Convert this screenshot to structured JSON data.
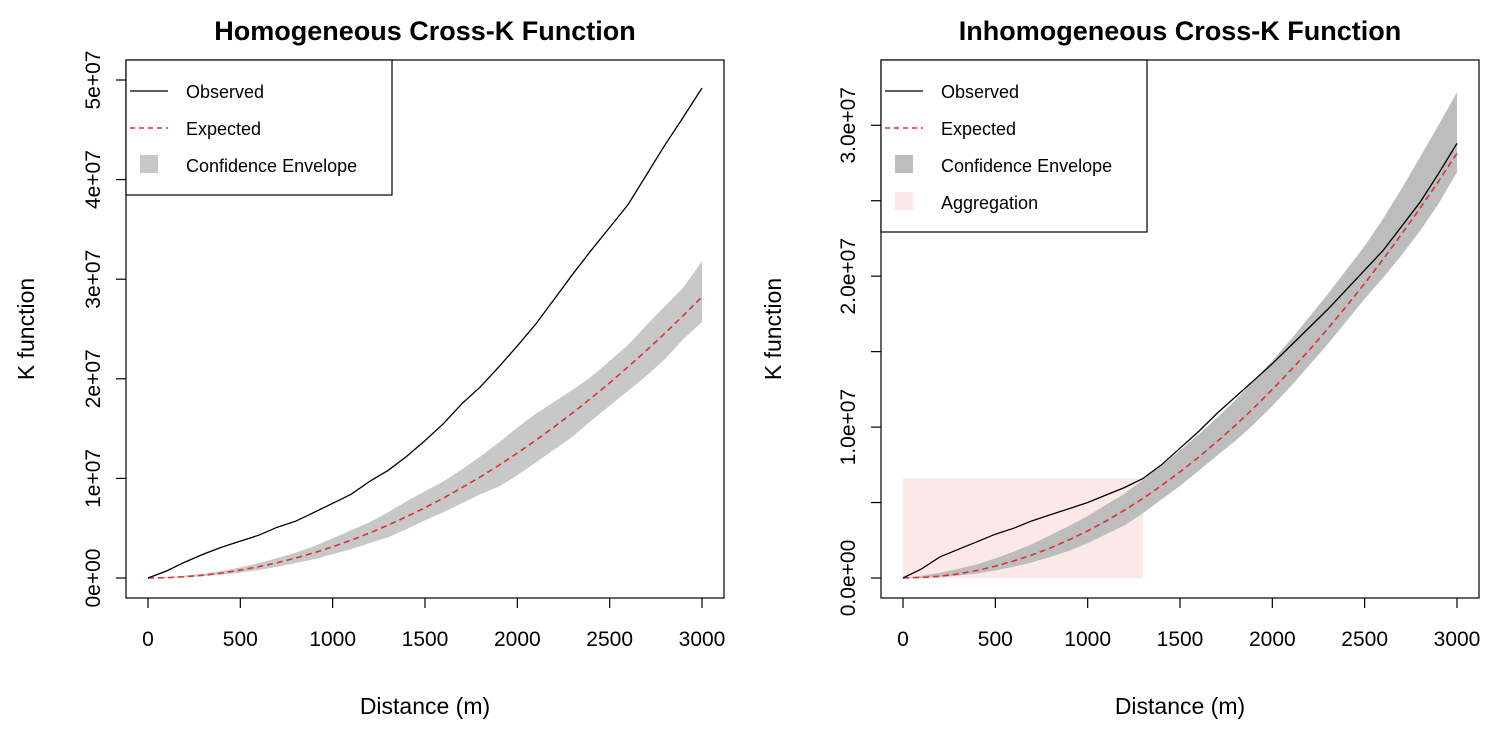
{
  "chart_data": [
    {
      "type": "line",
      "title": "Homogeneous Cross-K Function",
      "xlabel": "Distance (m)",
      "ylabel": "K function",
      "xlim": [
        0,
        3000
      ],
      "ylim": [
        0,
        50000000
      ],
      "x_ticks": [
        0,
        500,
        1000,
        1500,
        2000,
        2500,
        3000
      ],
      "x_tick_labels": [
        "0",
        "500",
        "1000",
        "1500",
        "2000",
        "2500",
        "3000"
      ],
      "y_ticks": [
        0,
        10000000,
        20000000,
        30000000,
        40000000,
        50000000
      ],
      "y_tick_labels": [
        "0e+00",
        "1e+07",
        "2e+07",
        "3e+07",
        "4e+07",
        "5e+07"
      ],
      "legend_position": "top-left",
      "legend": [
        "Observed",
        "Expected",
        "Confidence Envelope"
      ],
      "x": [
        0,
        100,
        200,
        300,
        400,
        500,
        600,
        700,
        800,
        900,
        1000,
        1100,
        1200,
        1300,
        1400,
        1500,
        1600,
        1700,
        1800,
        1900,
        2000,
        2100,
        2200,
        2300,
        2400,
        2500,
        2600,
        2700,
        2800,
        2900,
        3000
      ],
      "series": [
        {
          "name": "Observed",
          "color": "#000000",
          "dash": "solid",
          "values": [
            0,
            700000,
            1600000,
            2400000,
            3100000,
            3700000,
            4300000,
            5100000,
            5700000,
            6600000,
            7500000,
            8400000,
            9700000,
            10800000,
            12200000,
            13800000,
            15500000,
            17500000,
            19200000,
            21200000,
            23300000,
            25500000,
            28000000,
            30500000,
            32900000,
            35200000,
            37500000,
            40500000,
            43500000,
            46300000,
            49200000
          ]
        },
        {
          "name": "Expected",
          "color": "#e03131",
          "dash": "dashed",
          "values": [
            0,
            30000,
            130000,
            280000,
            500000,
            790000,
            1130000,
            1540000,
            2010000,
            2540000,
            3140000,
            3800000,
            4520000,
            5310000,
            6150000,
            7060000,
            8030000,
            9070000,
            10160000,
            11320000,
            12540000,
            13830000,
            15180000,
            16590000,
            18060000,
            19600000,
            21200000,
            22860000,
            24590000,
            26380000,
            28230000
          ]
        }
      ],
      "envelope": {
        "name": "Confidence Envelope",
        "color": "#c8c8c8",
        "lower": [
          0,
          0,
          80000,
          180000,
          320000,
          550000,
          800000,
          1120000,
          1500000,
          1900000,
          2400000,
          2900000,
          3500000,
          4100000,
          4900000,
          5800000,
          6600000,
          7500000,
          8400000,
          9200000,
          10300000,
          11600000,
          12900000,
          14200000,
          15800000,
          17300000,
          18800000,
          20300000,
          22000000,
          24000000,
          25700000
        ],
        "upper": [
          0,
          90000,
          240000,
          420000,
          700000,
          1050000,
          1500000,
          2000000,
          2550000,
          3200000,
          4000000,
          4800000,
          5600000,
          6600000,
          7700000,
          8700000,
          9700000,
          10900000,
          12200000,
          13600000,
          15100000,
          16500000,
          17700000,
          18900000,
          20200000,
          21800000,
          23400000,
          25400000,
          27300000,
          29200000,
          31800000
        ]
      }
    },
    {
      "type": "line",
      "title": "Inhomogeneous Cross-K Function",
      "xlabel": "Distance (m)",
      "ylabel": "K function",
      "xlim": [
        0,
        3000
      ],
      "ylim": [
        0,
        33000000
      ],
      "x_ticks": [
        0,
        500,
        1000,
        1500,
        2000,
        2500,
        3000
      ],
      "x_tick_labels": [
        "0",
        "500",
        "1000",
        "1500",
        "2000",
        "2500",
        "3000"
      ],
      "y_ticks": [
        0,
        5000000,
        10000000,
        15000000,
        20000000,
        25000000,
        30000000
      ],
      "y_tick_labels": [
        "0.0e+00",
        "",
        "1.0e+07",
        "",
        "2.0e+07",
        "",
        "3.0e+07"
      ],
      "legend_position": "top-left",
      "legend": [
        "Observed",
        "Expected",
        "Confidence Envelope",
        "Aggregation"
      ],
      "x": [
        0,
        100,
        200,
        300,
        400,
        500,
        600,
        700,
        800,
        900,
        1000,
        1100,
        1200,
        1300,
        1400,
        1500,
        1600,
        1700,
        1800,
        1900,
        2000,
        2100,
        2200,
        2300,
        2400,
        2500,
        2600,
        2700,
        2800,
        2900,
        3000
      ],
      "series": [
        {
          "name": "Observed",
          "color": "#000000",
          "dash": "solid",
          "values": [
            0,
            600000,
            1400000,
            1900000,
            2400000,
            2900000,
            3300000,
            3800000,
            4200000,
            4600000,
            5000000,
            5500000,
            6000000,
            6600000,
            7500000,
            8600000,
            9700000,
            10900000,
            12000000,
            13100000,
            14200000,
            15400000,
            16600000,
            17800000,
            19100000,
            20400000,
            21700000,
            23300000,
            24900000,
            26800000,
            28800000
          ]
        },
        {
          "name": "Expected",
          "color": "#e03131",
          "dash": "dashed",
          "values": [
            0,
            30000,
            120000,
            280000,
            500000,
            780000,
            1130000,
            1530000,
            2000000,
            2530000,
            3120000,
            3780000,
            4500000,
            5280000,
            6120000,
            7030000,
            8000000,
            9030000,
            10120000,
            11270000,
            12490000,
            13770000,
            15110000,
            16520000,
            17990000,
            19520000,
            21120000,
            22780000,
            24500000,
            26280000,
            28150000
          ]
        }
      ],
      "envelope": {
        "name": "Confidence Envelope",
        "color": "#bdbdbd",
        "lower": [
          0,
          0,
          60000,
          160000,
          300000,
          500000,
          750000,
          1050000,
          1400000,
          1800000,
          2300000,
          2900000,
          3500000,
          4300000,
          5200000,
          6100000,
          7100000,
          8100000,
          9100000,
          10200000,
          11400000,
          12700000,
          14100000,
          15500000,
          17000000,
          18500000,
          19900000,
          21400000,
          23000000,
          24800000,
          26900000
        ],
        "upper": [
          0,
          150000,
          350000,
          600000,
          900000,
          1300000,
          1750000,
          2250000,
          2850000,
          3450000,
          4100000,
          4850000,
          5600000,
          6500000,
          7450000,
          8450000,
          9500000,
          10600000,
          11800000,
          13100000,
          14400000,
          15800000,
          17300000,
          18800000,
          20400000,
          22000000,
          23800000,
          25800000,
          27900000,
          30000000,
          32200000
        ]
      },
      "aggregation_region": {
        "name": "Aggregation",
        "color": "#fde8e8",
        "x_from": 0,
        "x_to": 1300,
        "y_from": 0,
        "y_to": 6600000
      }
    }
  ]
}
